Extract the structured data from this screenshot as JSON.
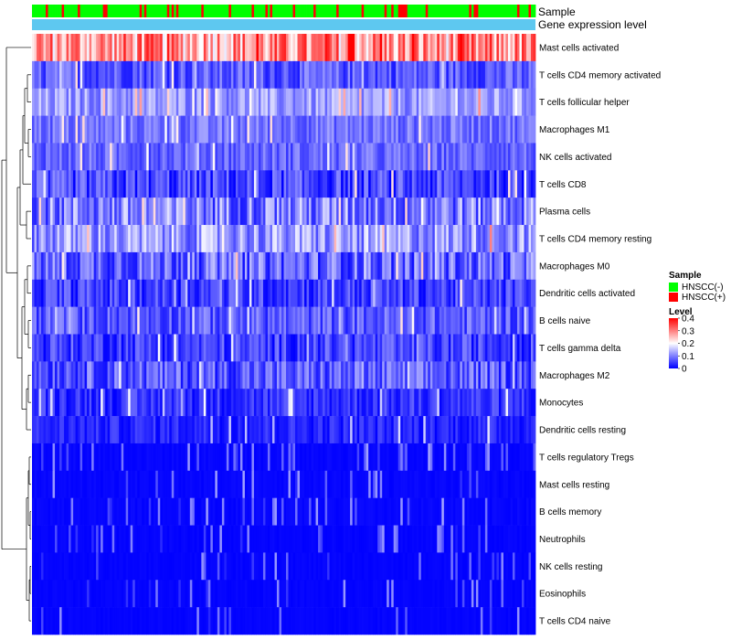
{
  "chart_data": {
    "type": "heatmap",
    "title": "",
    "annotation_rows": [
      {
        "name": "Sample",
        "kind": "categorical"
      },
      {
        "name": "Gene expression level",
        "kind": "constant",
        "color": "#5ec8f0"
      }
    ],
    "rows": [
      {
        "name": "Mast cells activated",
        "level": 0.28,
        "spread": 0.1,
        "sparse": 0.0
      },
      {
        "name": "T cells CD4 memory activated",
        "level": 0.07,
        "spread": 0.05,
        "sparse": 0.0
      },
      {
        "name": "T cells follicular helper",
        "level": 0.12,
        "spread": 0.05,
        "sparse": 0.0
      },
      {
        "name": "Macrophages M1",
        "level": 0.09,
        "spread": 0.04,
        "sparse": 0.0
      },
      {
        "name": "NK cells activated",
        "level": 0.08,
        "spread": 0.04,
        "sparse": 0.0
      },
      {
        "name": "T cells CD8",
        "level": 0.05,
        "spread": 0.06,
        "sparse": 0.0
      },
      {
        "name": "Plasma cells",
        "level": 0.1,
        "spread": 0.08,
        "sparse": 0.0
      },
      {
        "name": "T cells CD4 memory resting",
        "level": 0.12,
        "spread": 0.07,
        "sparse": 0.0
      },
      {
        "name": "Macrophages M0",
        "level": 0.08,
        "spread": 0.07,
        "sparse": 0.0
      },
      {
        "name": "Dendritic cells activated",
        "level": 0.05,
        "spread": 0.05,
        "sparse": 0.0
      },
      {
        "name": "B cells naive",
        "level": 0.07,
        "spread": 0.05,
        "sparse": 0.0
      },
      {
        "name": "T cells gamma delta",
        "level": 0.05,
        "spread": 0.05,
        "sparse": 0.0
      },
      {
        "name": "Macrophages M2",
        "level": 0.07,
        "spread": 0.06,
        "sparse": 0.0
      },
      {
        "name": "Monocytes",
        "level": 0.04,
        "spread": 0.04,
        "sparse": 0.0
      },
      {
        "name": "Dendritic cells resting",
        "level": 0.03,
        "spread": 0.03,
        "sparse": 0.0
      },
      {
        "name": "T cells regulatory  Tregs",
        "level": 0.0,
        "spread": 0.03,
        "sparse": 0.2
      },
      {
        "name": "Mast cells resting",
        "level": 0.0,
        "spread": 0.03,
        "sparse": 0.12
      },
      {
        "name": "B cells memory",
        "level": 0.0,
        "spread": 0.03,
        "sparse": 0.12
      },
      {
        "name": "Neutrophils",
        "level": 0.0,
        "spread": 0.02,
        "sparse": 0.1
      },
      {
        "name": "NK cells resting",
        "level": 0.0,
        "spread": 0.02,
        "sparse": 0.08
      },
      {
        "name": "Eosinophils",
        "level": 0.0,
        "spread": 0.02,
        "sparse": 0.06
      },
      {
        "name": "T cells CD4 naive",
        "level": 0.0,
        "spread": 0.02,
        "sparse": 0.05
      }
    ],
    "n_samples": 220,
    "sample_groups": [
      "HNSCC(-)",
      "HNSCC(+)"
    ],
    "hnscc_pos_fraction": 0.2,
    "colors": {
      "low": "#0000ff",
      "mid": "#ffffff",
      "high": "#ff0000",
      "hnscc_neg": "#00ff00",
      "hnscc_pos": "#ff0000"
    },
    "color_scale": {
      "min": 0,
      "mid": 0.2,
      "max": 0.4
    },
    "legend": {
      "sample_title": "Sample",
      "sample_items": [
        "HNSCC(-)",
        "HNSCC(+)"
      ],
      "level_title": "Level",
      "level_ticks": [
        "0.4",
        "0.3",
        "0.2",
        "0.1",
        "0"
      ]
    },
    "legend_position": "right",
    "dendrogram": "rows, left side"
  }
}
